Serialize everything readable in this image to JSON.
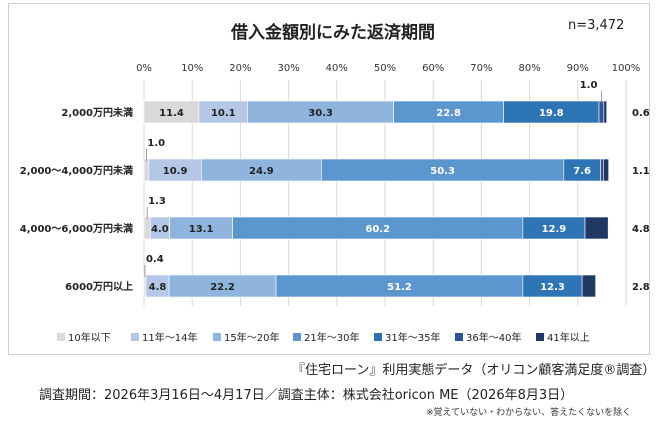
{
  "title": "借入金額別にみた返済期間",
  "n_label": "n=3,472",
  "footer": {
    "line1": "『住宅ローン』利用実態データ（オリコン顧客満足度®調査）",
    "line2": "調査期間：2026年3月16日～4月17日／調査主体：株式会社oricon ME（2026年8月3日）",
    "note": "※覚えていない・わからない、答えたくないを除く"
  },
  "chart_data": {
    "type": "bar",
    "stacked": true,
    "orientation": "horizontal",
    "title": "借入金額別にみた返済期間",
    "categories": [
      "2,000万円未満",
      "2,000～4,000万円未満",
      "4,000～6,000万円未満",
      "6000万円以上"
    ],
    "xlim": [
      0,
      100
    ],
    "x_ticks": [
      "0%",
      "10%",
      "20%",
      "30%",
      "40%",
      "50%",
      "60%",
      "70%",
      "80%",
      "90%",
      "100%"
    ],
    "legend_position": "bottom",
    "series": [
      {
        "name": "10年以下",
        "color": "#d9d9d9",
        "values": [
          11.4,
          1.0,
          1.3,
          0.4
        ]
      },
      {
        "name": "11年～14年",
        "color": "#b4c7e7",
        "values": [
          10.1,
          10.9,
          4.0,
          4.8
        ]
      },
      {
        "name": "15年～20年",
        "color": "#8fb4de",
        "values": [
          30.3,
          24.9,
          13.1,
          22.2
        ]
      },
      {
        "name": "21年～30年",
        "color": "#5b96cf",
        "values": [
          22.8,
          50.3,
          60.2,
          51.2
        ]
      },
      {
        "name": "31年～35年",
        "color": "#2e75b6",
        "values": [
          19.8,
          7.6,
          12.9,
          12.3
        ]
      },
      {
        "name": "36年～40年",
        "color": "#2f5597",
        "values": [
          1.0,
          0.6,
          0.0,
          0.0
        ]
      },
      {
        "name": "41年以上",
        "color": "#1f3864",
        "values": [
          0.6,
          1.1,
          4.8,
          2.8
        ]
      }
    ],
    "data_labels": [
      [
        "11.4",
        "10.1",
        "30.3",
        "22.8",
        "19.8",
        "1.0",
        "0.6"
      ],
      [
        "1.0",
        "10.9",
        "24.9",
        "50.3",
        "7.6",
        "",
        "1.1"
      ],
      [
        "1.3",
        "4.0",
        "13.1",
        "60.2",
        "12.9",
        "",
        "4.8"
      ],
      [
        "0.4",
        "4.8",
        "22.2",
        "51.2",
        "12.3",
        "",
        "2.8"
      ]
    ]
  }
}
